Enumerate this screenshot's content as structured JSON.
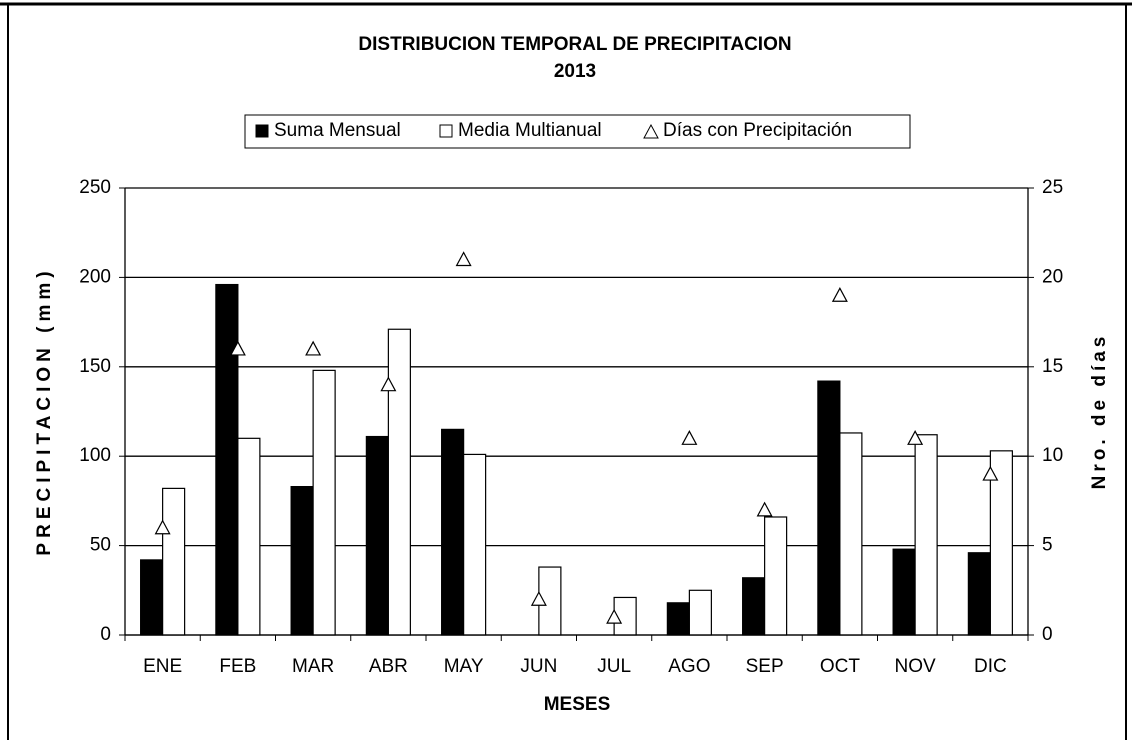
{
  "chart_data": {
    "type": "bar",
    "title": "DISTRIBUCION TEMPORAL DE PRECIPITACION",
    "subtitle": "2013",
    "x_label": "MESES",
    "y_label": "PRECIPITACION (mm)",
    "y2_label": "Nro. de días",
    "categories": [
      "ENE",
      "FEB",
      "MAR",
      "ABR",
      "MAY",
      "JUN",
      "JUL",
      "AGO",
      "SEP",
      "OCT",
      "NOV",
      "DIC"
    ],
    "series": [
      {
        "name": "Suma Mensual",
        "color": "#000000",
        "values": [
          42,
          196,
          83,
          111,
          115,
          0,
          0,
          18,
          32,
          142,
          48,
          46
        ]
      },
      {
        "name": "Media Multianual",
        "color": "#ffffff",
        "values": [
          82,
          110,
          148,
          171,
          101,
          38,
          21,
          25,
          66,
          113,
          112,
          103
        ]
      },
      {
        "name": "Días con Precipitación",
        "color": "#ffffff",
        "axis": "y2",
        "type": "scatter",
        "values": [
          6,
          16,
          16,
          14,
          21,
          2,
          1,
          11,
          7,
          19,
          11,
          9
        ]
      }
    ],
    "ylim": [
      0,
      250
    ],
    "yticks": [
      0,
      50,
      100,
      150,
      200,
      250
    ],
    "y2lim": [
      0,
      25
    ],
    "y2ticks": [
      0,
      5,
      10,
      15,
      20,
      25
    ],
    "grid": true,
    "legend": "top"
  }
}
